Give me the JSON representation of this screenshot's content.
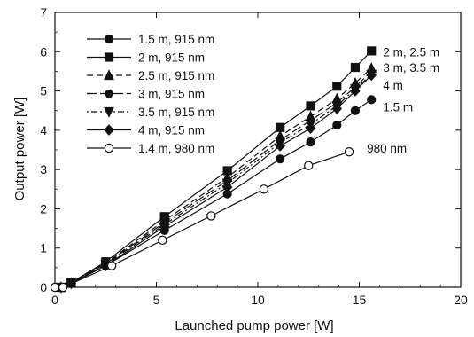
{
  "chart_data": {
    "type": "line",
    "xlabel": "Launched pump power  [W]",
    "ylabel": "Output power  [W]",
    "xlim": [
      0,
      20
    ],
    "ylim": [
      0,
      7
    ],
    "xticks": [
      0,
      5,
      10,
      15,
      20
    ],
    "yticks": [
      0,
      1,
      2,
      3,
      4,
      5,
      6,
      7
    ],
    "grid": false,
    "legend_placement": "top-left",
    "series": [
      {
        "name": "1.5 m, 915 nm",
        "marker": "circle-filled",
        "dash": "solid",
        "x": [
          0.3,
          0.8,
          2.5,
          5.4,
          8.5,
          11.1,
          12.6,
          13.9,
          14.8,
          15.6
        ],
        "y": [
          0.0,
          0.1,
          0.55,
          1.45,
          2.38,
          3.27,
          3.7,
          4.13,
          4.5,
          4.78
        ]
      },
      {
        "name": "2 m, 915 nm",
        "marker": "square-filled",
        "dash": "solid",
        "x": [
          0.3,
          0.8,
          2.5,
          5.4,
          8.5,
          11.1,
          12.6,
          13.9,
          14.8,
          15.6
        ],
        "y": [
          0.0,
          0.12,
          0.65,
          1.8,
          2.97,
          4.07,
          4.62,
          5.12,
          5.6,
          6.02
        ]
      },
      {
        "name": "2.5 m, 915 nm",
        "marker": "triangle-filled",
        "dash": "dashed",
        "x": [
          0.3,
          0.8,
          2.5,
          5.4,
          8.5,
          11.1,
          12.6,
          13.9,
          14.8,
          15.6
        ],
        "y": [
          0.0,
          0.11,
          0.62,
          1.7,
          2.8,
          3.85,
          4.35,
          4.8,
          5.2,
          5.58
        ]
      },
      {
        "name": "3 m, 915 nm",
        "marker": "hexagon-filled",
        "dash": "longdash",
        "x": [
          0.3,
          0.8,
          2.5,
          5.4,
          8.5,
          11.1,
          12.6,
          13.9,
          14.8,
          15.6
        ],
        "y": [
          0.0,
          0.11,
          0.6,
          1.65,
          2.72,
          3.75,
          4.25,
          4.7,
          5.1,
          5.5
        ]
      },
      {
        "name": "3.5 m, 915 nm",
        "marker": "triangle-down-filled",
        "dash": "dashdot",
        "x": [
          0.3,
          0.8,
          2.5,
          5.4,
          8.5,
          11.1,
          12.6,
          13.9,
          14.8,
          15.6
        ],
        "y": [
          0.0,
          0.1,
          0.58,
          1.6,
          2.65,
          3.68,
          4.15,
          4.62,
          5.05,
          5.42
        ]
      },
      {
        "name": "4 m, 915 nm",
        "marker": "diamond-filled",
        "dash": "solid",
        "x": [
          0.3,
          0.8,
          2.5,
          5.4,
          8.5,
          11.1,
          12.6,
          13.9,
          14.8,
          15.6
        ],
        "y": [
          0.0,
          0.1,
          0.55,
          1.55,
          2.55,
          3.6,
          4.05,
          4.55,
          5.0,
          5.4
        ]
      },
      {
        "name": "1.4 m, 980 nm",
        "marker": "circle-open",
        "dash": "solid",
        "x": [
          0.0,
          0.4,
          2.8,
          5.3,
          7.7,
          10.3,
          12.5,
          14.5
        ],
        "y": [
          0.0,
          0.0,
          0.55,
          1.2,
          1.82,
          2.5,
          3.1,
          3.45
        ]
      }
    ],
    "annotations": [
      {
        "text": "2 m, 2.5 m",
        "x": 16.0,
        "y": 6.0
      },
      {
        "text": "3 m, 3.5 m",
        "x": 16.0,
        "y": 5.6
      },
      {
        "text": "4 m",
        "x": 16.0,
        "y": 5.15
      },
      {
        "text": "1.5 m",
        "x": 16.0,
        "y": 4.6
      },
      {
        "text": "980 nm",
        "x": 15.2,
        "y": 3.55
      }
    ]
  }
}
